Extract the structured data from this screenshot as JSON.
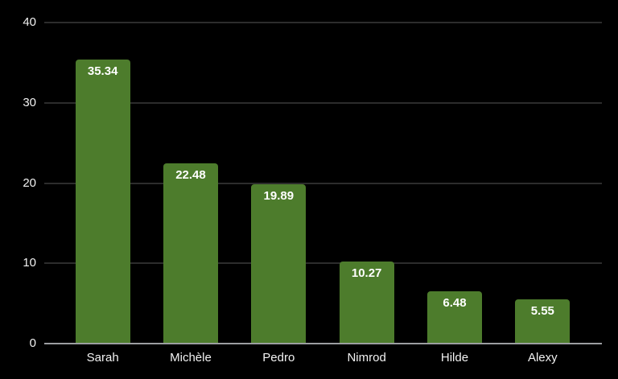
{
  "chart_data": {
    "type": "bar",
    "title": "",
    "xlabel": "",
    "ylabel": "",
    "categories": [
      "Sarah",
      "Michèle",
      "Pedro",
      "Nimrod",
      "Hilde",
      "Alexy"
    ],
    "values": [
      35.34,
      22.48,
      19.89,
      10.27,
      6.48,
      5.55
    ],
    "value_labels": [
      "35.34",
      "22.48",
      "19.89",
      "10.27",
      "6.48",
      "5.55"
    ],
    "ylim": [
      0,
      40
    ],
    "yticks": [
      0,
      10,
      20,
      30,
      40
    ],
    "grid": true,
    "legend": false,
    "colors": {
      "background": "#000000",
      "bar": "#4d7c2c",
      "gridline": "#2c2c2c",
      "axis_line": "#9c9ea1",
      "text": "#f2f2f2",
      "value_label": "#ffffff"
    }
  }
}
